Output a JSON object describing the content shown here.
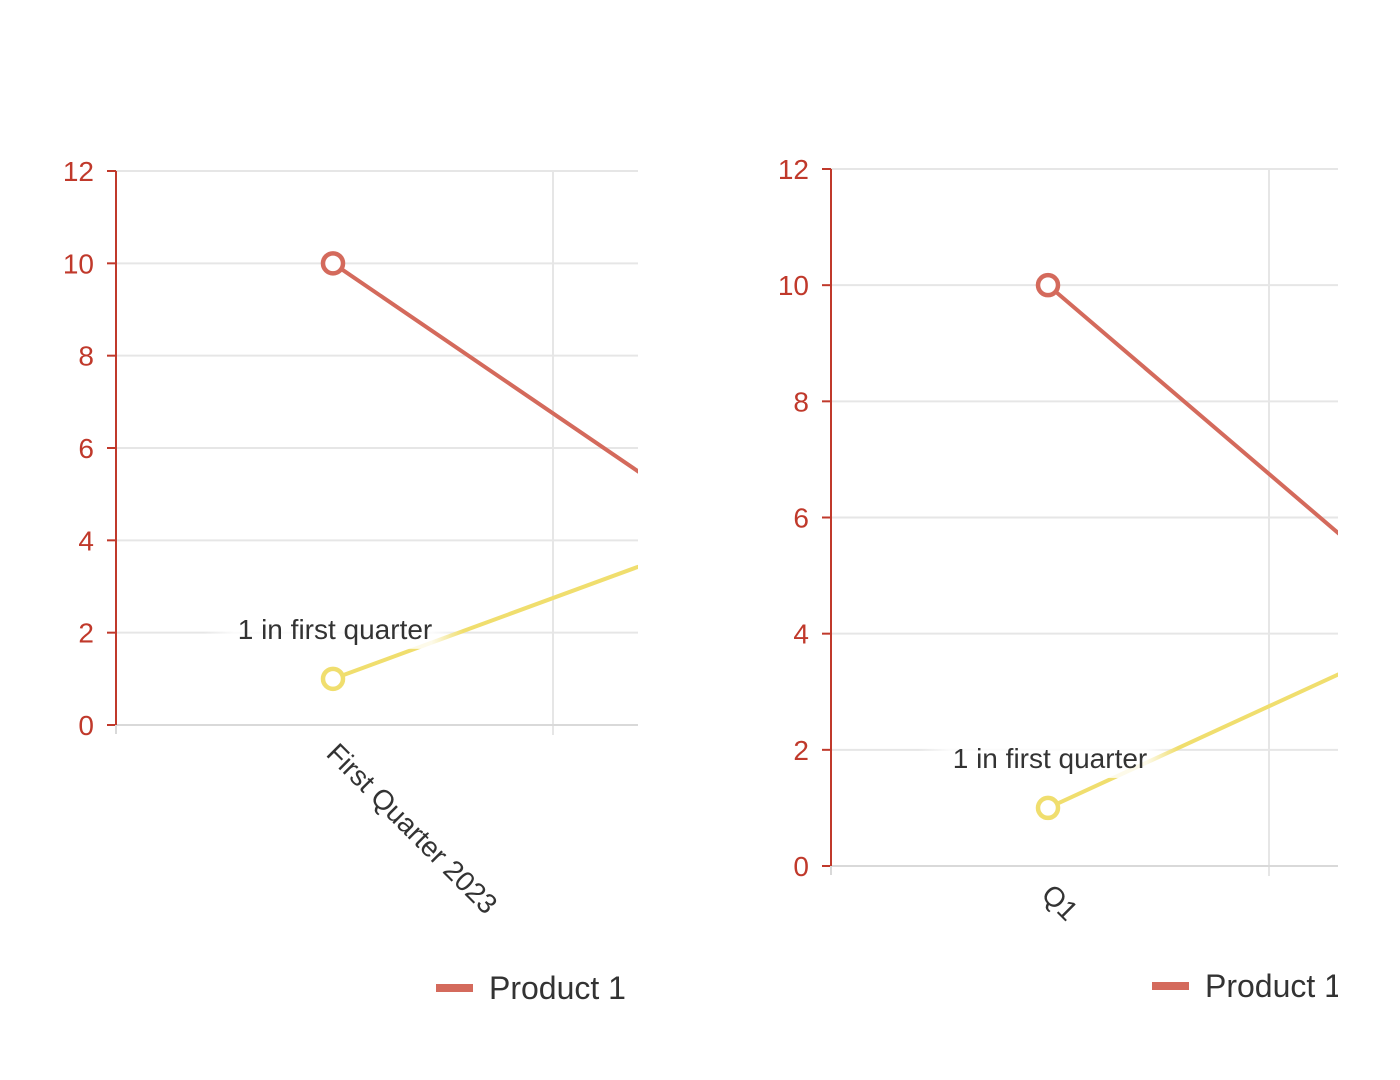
{
  "chart_data": [
    {
      "type": "line",
      "categories": [
        "First Quarter 2023"
      ],
      "category_label_rotation": 45,
      "ylim": [
        0,
        12
      ],
      "y_ticks": [
        "0",
        "2",
        "4",
        "6",
        "8",
        "10",
        "12"
      ],
      "grid": true,
      "series": [
        {
          "name": "Product 1",
          "color": "#d46a5c",
          "values": [
            10
          ],
          "continues_to_next": 3.5
        },
        {
          "color": "#f0de6e",
          "values": [
            1
          ],
          "continues_to_next": 4.5
        }
      ],
      "annotations": [
        {
          "series": 1,
          "category": 0,
          "text": "1 in first quarter"
        }
      ],
      "legend": {
        "items": [
          "Product 1"
        ],
        "placement": "bottom"
      },
      "axis_color": "#c0392b"
    },
    {
      "type": "line",
      "categories": [
        "Q1"
      ],
      "category_label_rotation": 45,
      "ylim": [
        0,
        12
      ],
      "y_ticks": [
        "0",
        "2",
        "4",
        "6",
        "8",
        "10",
        "12"
      ],
      "grid": true,
      "series": [
        {
          "name": "Product 1",
          "color": "#d46a5c",
          "values": [
            10
          ],
          "continues_to_next": 3.5
        },
        {
          "color": "#f0de6e",
          "values": [
            1
          ],
          "continues_to_next": 4.5
        }
      ],
      "annotations": [
        {
          "series": 1,
          "category": 0,
          "text": "1 in first quarter"
        }
      ],
      "legend": {
        "items": [
          "Product 1"
        ],
        "placement": "bottom"
      },
      "axis_color": "#c0392b"
    }
  ]
}
